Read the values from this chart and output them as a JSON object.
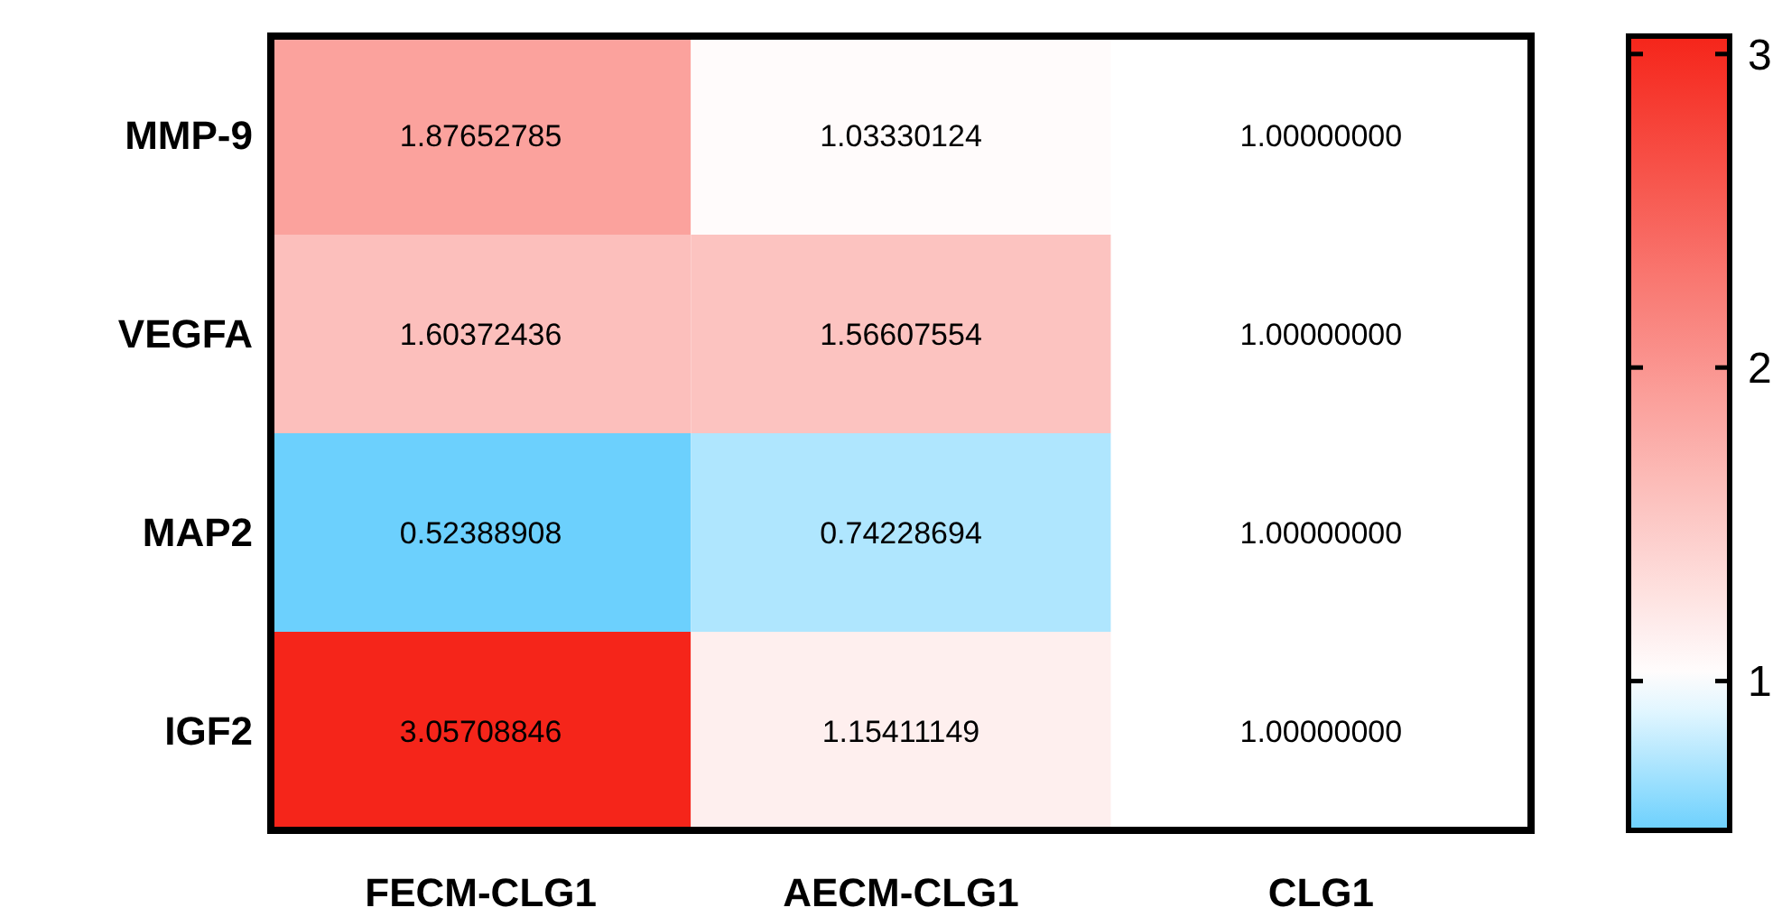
{
  "chart_data": {
    "type": "heatmap",
    "categories": [
      "FECM-CLG1",
      "AECM-CLG1",
      "CLG1"
    ],
    "y_categories": [
      "MMP-9",
      "VEGFA",
      "MAP2",
      "IGF2"
    ],
    "cells": [
      [
        1.87652785,
        1.03330124,
        1.0
      ],
      [
        1.60372436,
        1.56607554,
        1.0
      ],
      [
        0.52388908,
        0.74228694,
        1.0
      ],
      [
        3.05708846,
        1.15411149,
        1.0
      ]
    ],
    "cell_labels": [
      [
        "1.87652785",
        "1.03330124",
        "1.00000000"
      ],
      [
        "1.60372436",
        "1.56607554",
        "1.00000000"
      ],
      [
        "0.52388908",
        "0.74228694",
        "1.00000000"
      ],
      [
        "3.05708846",
        "1.15411149",
        "1.00000000"
      ]
    ],
    "clim": [
      0.52388908,
      3.05708846
    ],
    "cticks": [
      1,
      2,
      3
    ],
    "colors": [
      "#6cd0fd",
      "#ffffff",
      "#f5251a"
    ]
  }
}
